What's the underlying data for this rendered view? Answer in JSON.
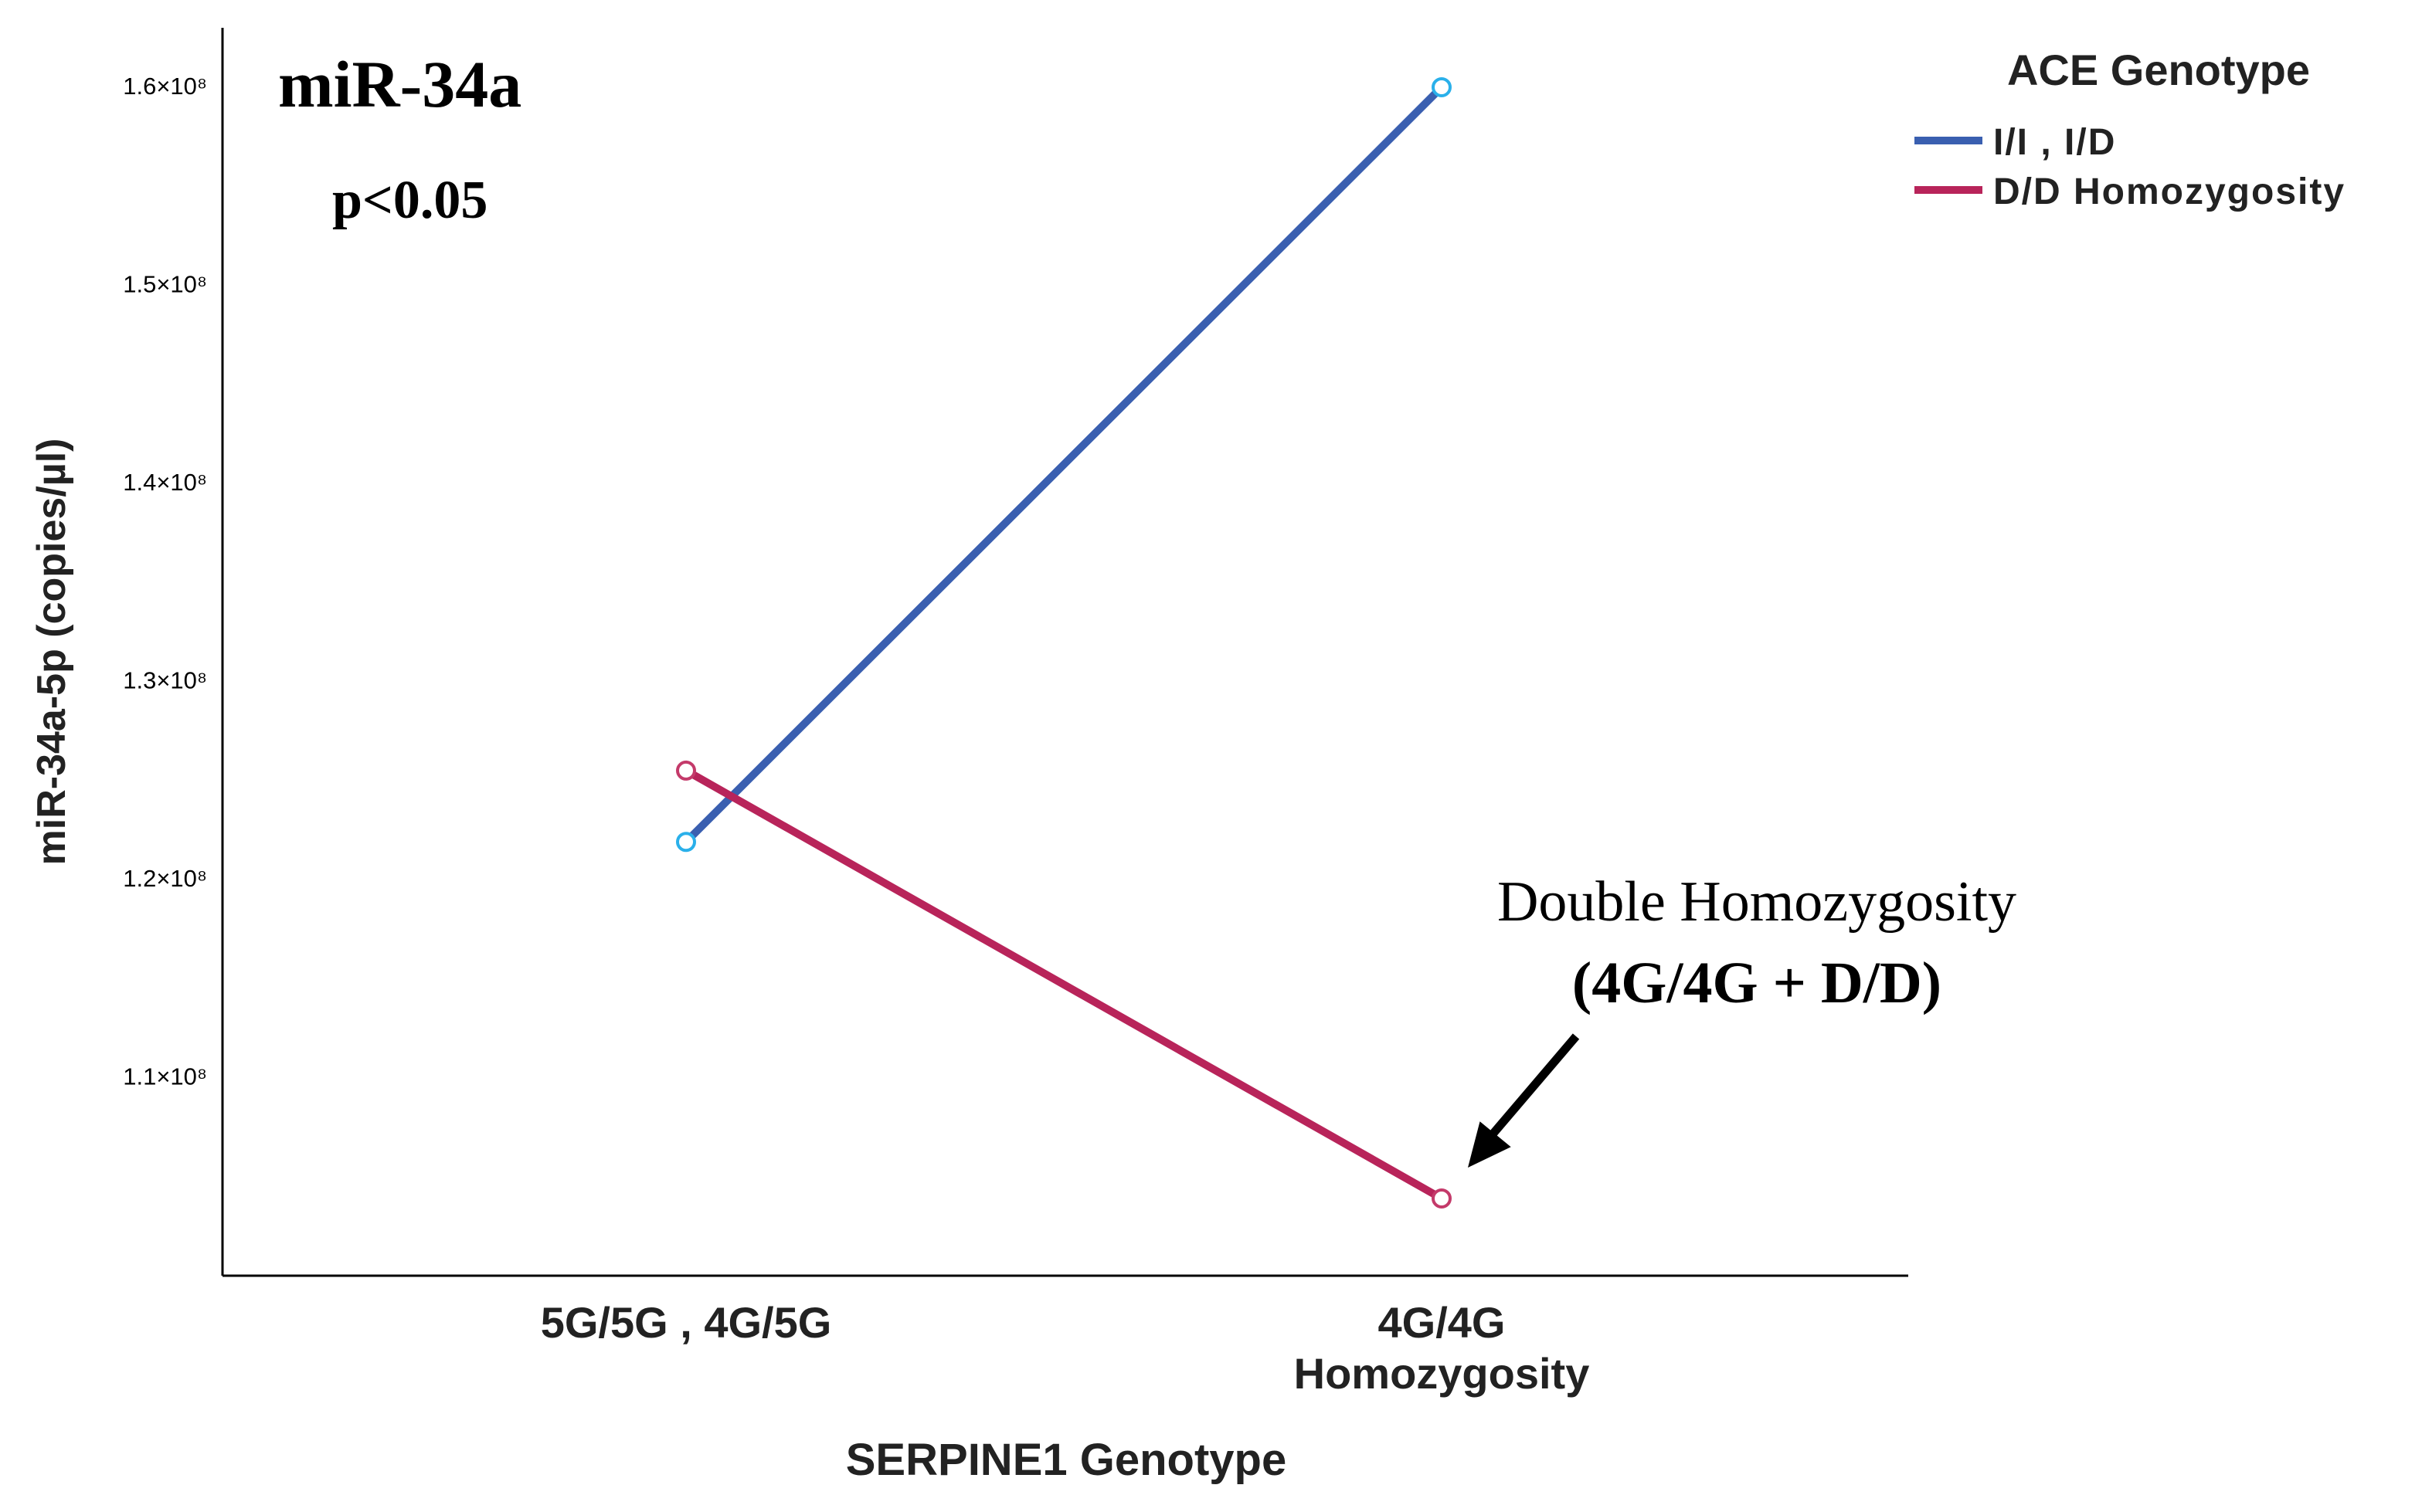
{
  "chart_data": {
    "type": "line",
    "title": "miR-34a",
    "subtitle": "p<0.05",
    "xlabel": "SERPINE1 Genotype",
    "ylabel": "miR-34a-5p (copies/µl)",
    "categories": [
      "5G/5G , 4G/5G",
      "4G/4G Homozygosity"
    ],
    "category_lines": [
      [
        "5G/5G , 4G/5G"
      ],
      [
        "4G/4G",
        "Homozygosity"
      ]
    ],
    "ylim": [
      100000000,
      163000000
    ],
    "yticks": [
      {
        "value": 110000000,
        "label": "1.1×10⁸"
      },
      {
        "value": 120000000,
        "label": "1.2×10⁸"
      },
      {
        "value": 130000000,
        "label": "1.3×10⁸"
      },
      {
        "value": 140000000,
        "label": "1.4×10⁸"
      },
      {
        "value": 150000000,
        "label": "1.5×10⁸"
      },
      {
        "value": 160000000,
        "label": "1.6×10⁸"
      }
    ],
    "legend": {
      "title": "ACE Genotype",
      "placement": "top-right"
    },
    "series": [
      {
        "name": "I/I , I/D",
        "color": "#3a5fb0",
        "marker_color": "#2ab0ea",
        "values": [
          121900000,
          160000000
        ]
      },
      {
        "name": "D/D Homozygosity",
        "color": "#b8245a",
        "marker_color": "#c43a6a",
        "values": [
          125500000,
          103900000
        ]
      }
    ],
    "annotation": {
      "line1": "Double Homozygosity",
      "line2": "(4G/4G + D/D)",
      "series_index": 1,
      "category_index": 1
    },
    "grid": false
  }
}
